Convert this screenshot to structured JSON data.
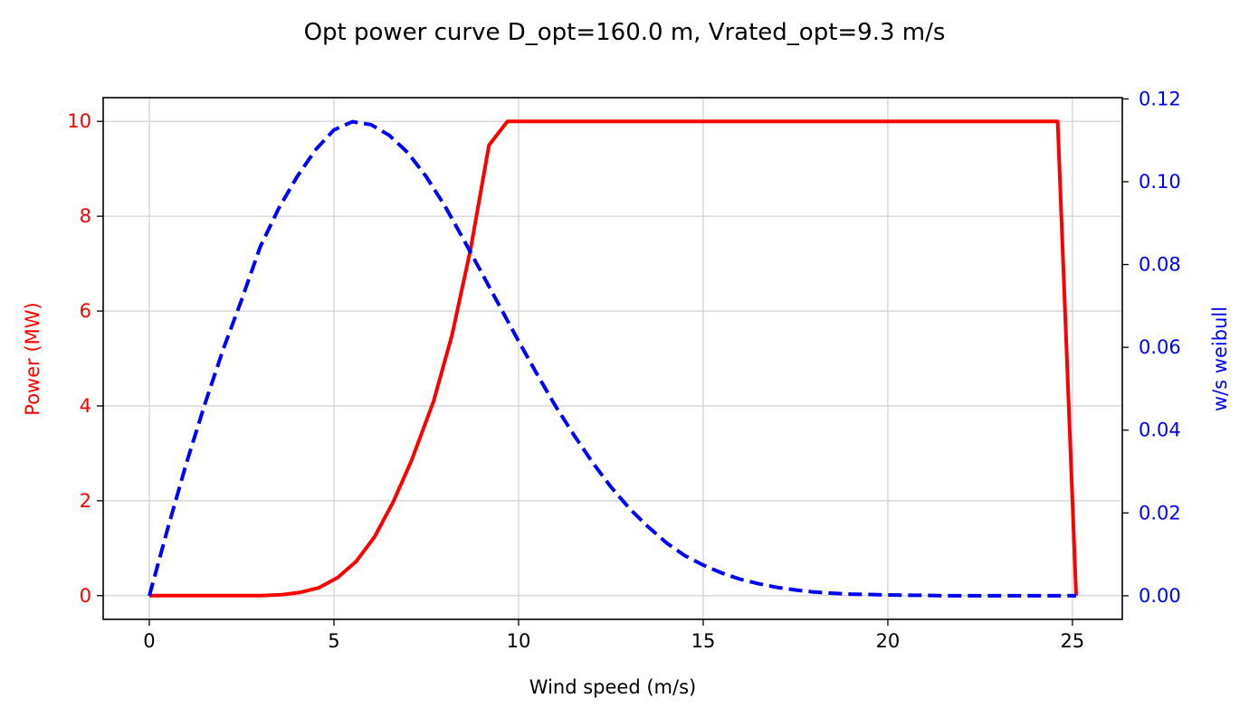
{
  "chart_data": {
    "type": "line",
    "title": "Opt power curve D_opt=160.0 m, Vrated_opt=9.3 m/s",
    "xlabel": "Wind speed (m/s)",
    "ylabel_left": "Power (MW)",
    "ylabel_right": "w/s weibull",
    "xlim": [
      -1.25,
      26.35
    ],
    "ylim_left": [
      -0.5,
      10.5
    ],
    "ylim_right": [
      -0.0057,
      0.1203
    ],
    "x_ticks": [
      0,
      5,
      10,
      15,
      20,
      25
    ],
    "y_ticks_left": [
      0,
      2,
      4,
      6,
      8,
      10
    ],
    "y_ticks_right": [
      0.0,
      0.02,
      0.04,
      0.06,
      0.08,
      0.1,
      0.12
    ],
    "y_tick_labels_right": [
      "0.00",
      "0.02",
      "0.04",
      "0.06",
      "0.08",
      "0.10",
      "0.12"
    ],
    "grid": true,
    "colors": {
      "power": "#ff0000",
      "weibull": "#0000ff",
      "left_axis": "#ff0000",
      "right_axis": "#0000ff",
      "grid": "#d3d3d3"
    },
    "series": [
      {
        "axis": "left",
        "style": "solid",
        "x": [
          0,
          0.5,
          1.0,
          1.5,
          2.0,
          2.5,
          3.0,
          3.6,
          4.1,
          4.6,
          5.1,
          5.6,
          6.1,
          6.6,
          7.1,
          7.7,
          8.2,
          8.7,
          9.2,
          9.7,
          10.2,
          12,
          15,
          18,
          21,
          24.6,
          25.1
        ],
        "values": [
          0,
          0,
          0,
          0,
          0,
          0,
          0,
          0.02,
          0.07,
          0.17,
          0.38,
          0.72,
          1.24,
          1.97,
          2.85,
          4.1,
          5.5,
          7.3,
          9.5,
          10,
          10,
          10,
          10,
          10,
          10,
          10,
          0
        ]
      },
      {
        "axis": "right",
        "style": "dashed",
        "x": [
          0,
          0.5,
          1.0,
          1.5,
          2.0,
          2.5,
          3.0,
          3.5,
          4.0,
          4.5,
          5.0,
          5.5,
          6.0,
          6.5,
          7.0,
          7.5,
          8.0,
          8.5,
          9.0,
          9.5,
          10.0,
          10.5,
          11.0,
          11.5,
          12.0,
          12.5,
          13.0,
          13.5,
          14.0,
          14.5,
          15.0,
          15.5,
          16.0,
          16.5,
          17.0,
          17.5,
          18.0,
          18.5,
          19.0,
          19.5,
          20.0,
          20.5,
          21.0,
          21.5,
          22.0,
          22.5,
          23.0,
          23.5,
          24.0,
          24.5,
          25.0,
          25.1
        ],
        "values": [
          0,
          0.0163,
          0.0319,
          0.0462,
          0.0595,
          0.0715,
          0.0842,
          0.0935,
          0.1012,
          0.1077,
          0.1125,
          0.1145,
          0.1138,
          0.1112,
          0.107,
          0.1012,
          0.0942,
          0.0862,
          0.078,
          0.0697,
          0.0615,
          0.0535,
          0.0458,
          0.0388,
          0.0322,
          0.0263,
          0.0211,
          0.0167,
          0.0128,
          0.0097,
          0.0074,
          0.0055,
          0.004,
          0.0029,
          0.002,
          0.0014,
          0.0009,
          0.0006,
          0.0004,
          0.0003,
          0.0002,
          0.0001,
          0.0001,
          0,
          0,
          0,
          0,
          0,
          0,
          0,
          0,
          0
        ]
      }
    ]
  }
}
